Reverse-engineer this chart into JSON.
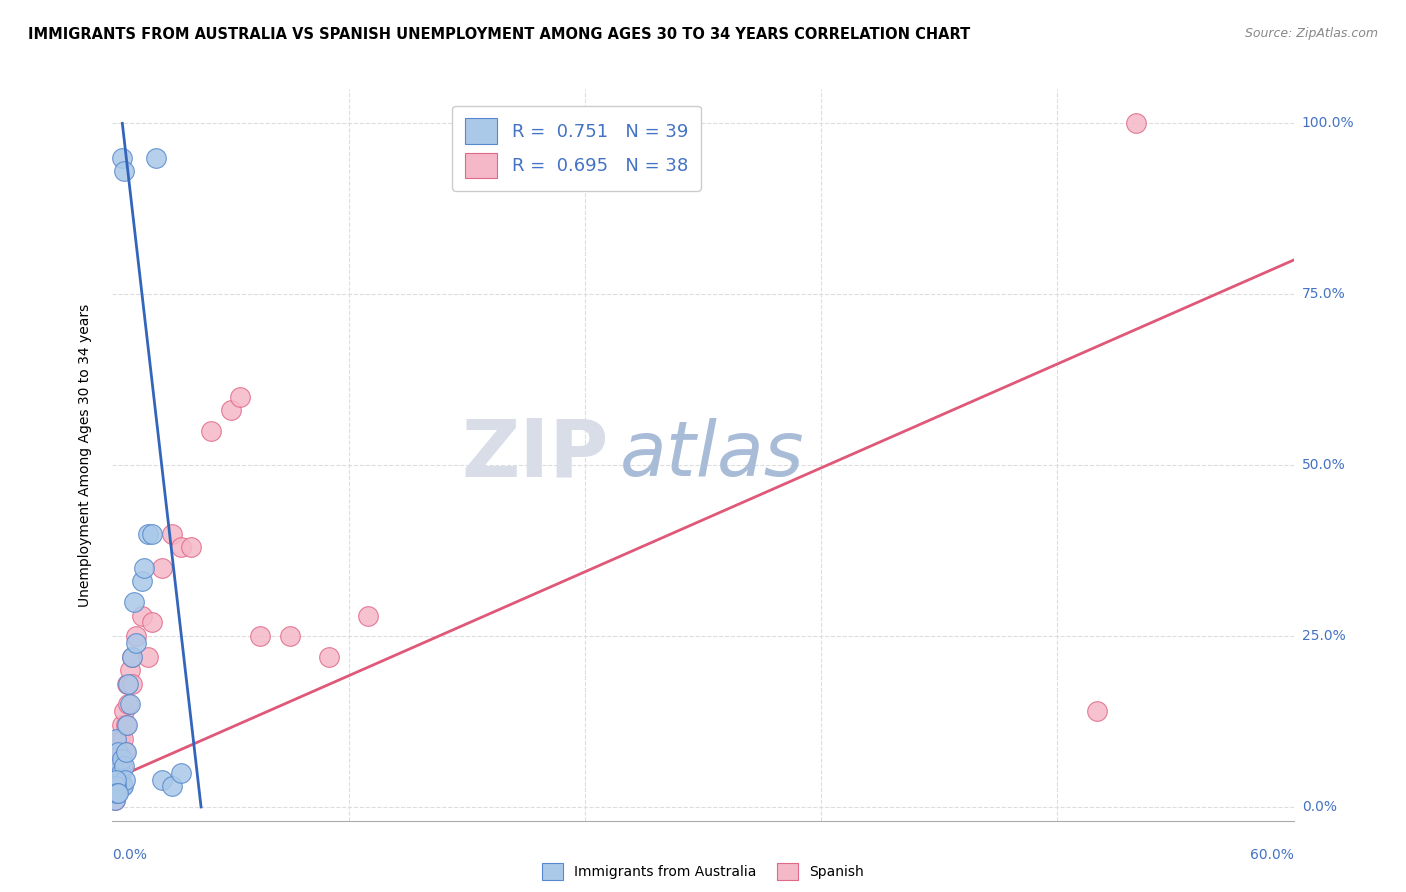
{
  "title": "IMMIGRANTS FROM AUSTRALIA VS SPANISH UNEMPLOYMENT AMONG AGES 30 TO 34 YEARS CORRELATION CHART",
  "source": "Source: ZipAtlas.com",
  "ylabel": "Unemployment Among Ages 30 to 34 years",
  "ytick_labels": [
    "0.0%",
    "25.0%",
    "50.0%",
    "75.0%",
    "100.0%"
  ],
  "ytick_values": [
    0,
    25,
    50,
    75,
    100
  ],
  "xlim": [
    0,
    60
  ],
  "ylim": [
    -2,
    105
  ],
  "legend_r1": "0.751",
  "legend_n1": "39",
  "legend_r2": "0.695",
  "legend_n2": "38",
  "color_blue_fill": "#aac8e8",
  "color_blue_edge": "#5588cc",
  "color_pink_fill": "#f5b8c8",
  "color_pink_edge": "#e06888",
  "color_blue_line": "#3366bb",
  "color_pink_line": "#e05878",
  "color_blue_text": "#4472c4",
  "watermark_zip_color": "#d0d8e8",
  "watermark_atlas_color": "#a8c0e0",
  "blue_scatter_x": [
    0.1,
    0.15,
    0.2,
    0.2,
    0.25,
    0.3,
    0.3,
    0.35,
    0.4,
    0.4,
    0.45,
    0.5,
    0.5,
    0.5,
    0.55,
    0.6,
    0.6,
    0.65,
    0.7,
    0.75,
    0.8,
    0.9,
    1.0,
    1.1,
    1.2,
    1.5,
    1.6,
    1.8,
    2.0,
    2.2,
    2.5,
    3.0,
    3.5,
    0.1,
    0.15,
    0.2,
    0.2,
    0.25,
    0.3
  ],
  "blue_scatter_y": [
    2,
    3,
    5,
    10,
    4,
    8,
    3,
    6,
    4,
    3,
    5,
    7,
    3,
    95,
    3,
    93,
    6,
    4,
    8,
    12,
    18,
    15,
    22,
    30,
    24,
    33,
    35,
    40,
    40,
    95,
    4,
    3,
    5,
    2,
    1,
    3,
    4,
    2,
    2
  ],
  "pink_scatter_x": [
    0.1,
    0.15,
    0.2,
    0.2,
    0.25,
    0.3,
    0.3,
    0.35,
    0.4,
    0.45,
    0.5,
    0.5,
    0.55,
    0.6,
    0.65,
    0.7,
    0.75,
    0.8,
    0.9,
    1.0,
    1.0,
    1.2,
    1.5,
    1.8,
    2.0,
    2.5,
    3.0,
    3.5,
    4.0,
    5.0,
    6.0,
    6.5,
    7.5,
    9.0,
    11.0,
    13.0,
    50.0,
    52.0
  ],
  "pink_scatter_y": [
    2,
    1,
    3,
    5,
    4,
    6,
    8,
    5,
    10,
    8,
    6,
    12,
    10,
    14,
    8,
    12,
    18,
    15,
    20,
    22,
    18,
    25,
    28,
    22,
    27,
    35,
    40,
    38,
    38,
    55,
    58,
    60,
    25,
    25,
    22,
    28,
    14,
    100
  ],
  "blue_line_x": [
    0.5,
    4.5
  ],
  "blue_line_y": [
    100,
    0
  ],
  "pink_line_x": [
    0,
    60
  ],
  "pink_line_y": [
    4,
    80
  ]
}
